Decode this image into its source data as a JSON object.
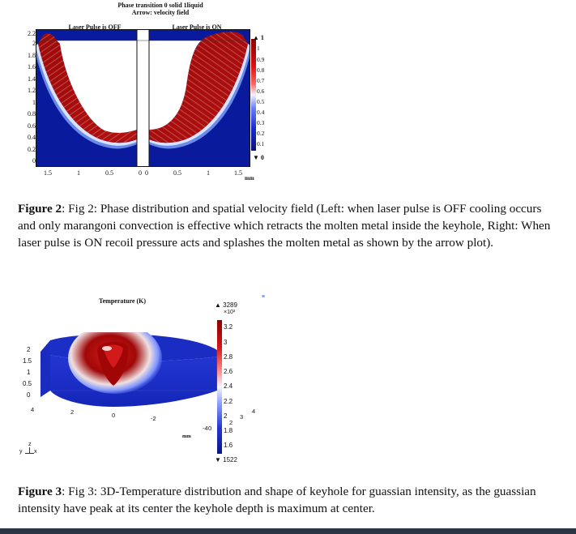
{
  "figure2": {
    "title_line1": "Phase transition 0 solid 1liquid",
    "title_line2": "Arrow: velocity field",
    "left_panel_label": "Laser Pulse is OFF",
    "right_panel_label": "Laser Pulse is ON",
    "y_ticks": [
      "2.2",
      "2",
      "1.8",
      "1.6",
      "1.4",
      "1.2",
      "1",
      "0.8",
      "0.6",
      "0.4",
      "0.2",
      "0"
    ],
    "x_ticks_left": [
      "1.5",
      "1",
      "0.5",
      "0"
    ],
    "x_ticks_right": [
      "0",
      "0.5",
      "1",
      "1.5"
    ],
    "x_unit": "mm",
    "colorbar_max": "1",
    "colorbar_ticks": [
      "1",
      "0.9",
      "0.8",
      "0.7",
      "0.6",
      "0.5",
      "0.4",
      "0.3",
      "0.2",
      "0.1"
    ],
    "colorbar_min": "0",
    "caption_label": "Figure 2",
    "caption_text": ": Fig 2: Phase distribution and spatial velocity field (Left: when laser pulse is OFF cooling occurs and only marangoni convection is effective which retracts the molten metal inside the keyhole, Right: When laser pulse is ON recoil pressure acts and splashes the molten metal as shown by the arrow plot)."
  },
  "figure3": {
    "title": "Temperature (K)",
    "colorbar_max": "3289",
    "colorbar_exponent": "×10³",
    "colorbar_ticks": [
      "3.2",
      "3",
      "2.8",
      "2.6",
      "2.4",
      "2.2",
      "2",
      "1.8",
      "1.6"
    ],
    "colorbar_min": "1522",
    "z_ticks": [
      "2",
      "1.5",
      "1",
      "0.5",
      "0"
    ],
    "x_ticks": [
      "4",
      "2",
      "0",
      "-2",
      "-4"
    ],
    "y_ticks": [
      "0",
      "2",
      "3",
      "4"
    ],
    "axis_unit": "mm",
    "axis_z": "z",
    "axis_y": "y",
    "axis_x": "x",
    "caption_label": "Figure 3",
    "caption_text": ": Fig 3: 3D-Temperature distribution and shape of keyhole for guassian intensity, as the guassian intensity have peak at its center the keyhole depth is maximum at center."
  },
  "colors": {
    "deep_blue": "#0a1a9c",
    "molten_red": "#9e0a0a",
    "bottom_bar": "#2a3442"
  }
}
